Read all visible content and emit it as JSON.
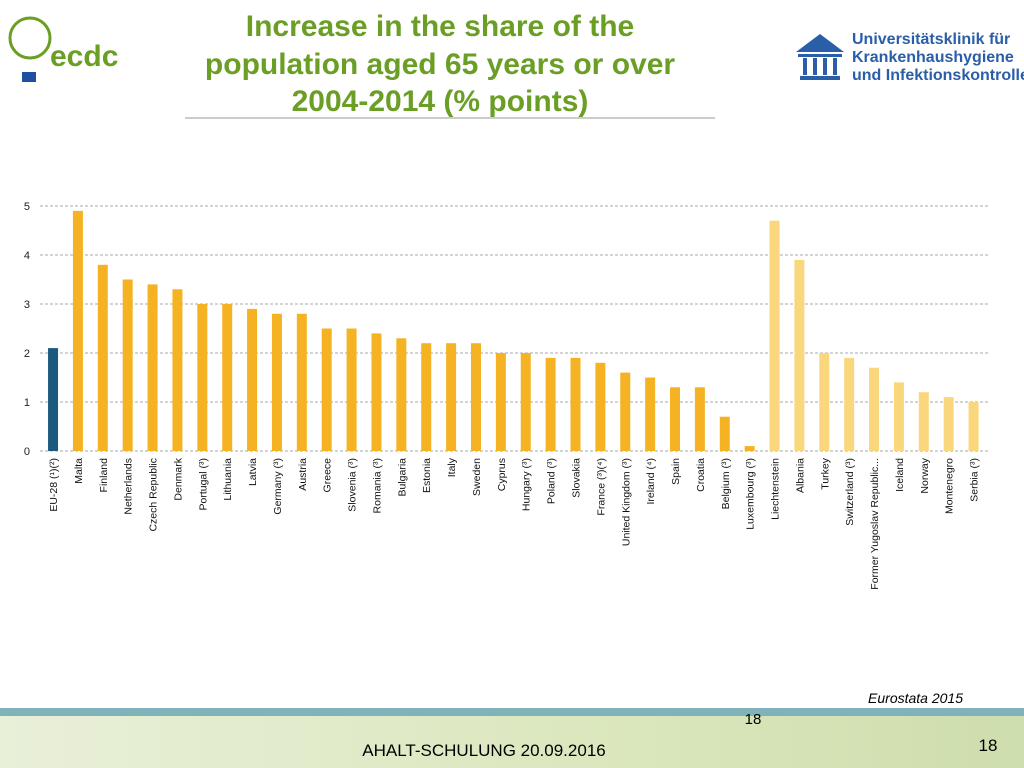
{
  "chart_data": {
    "type": "bar",
    "title": [
      "Increase in the share of the",
      "population aged 65 years or over",
      "2004-2014 (% points)"
    ],
    "categories": [
      "EU-28 (¹)(²)",
      "Malta",
      "Finland",
      "Netherlands",
      "Czech Republic",
      "Denmark",
      "Portugal (³)",
      "Lithuania",
      "Latvia",
      "Germany (³)",
      "Austria",
      "Greece",
      "Slovenia (³)",
      "Romania (³)",
      "Bulgaria",
      "Estonia",
      "Italy",
      "Sweden",
      "Cyprus",
      "Hungary (³)",
      "Poland (³)",
      "Slovakia",
      "France (³)(⁴)",
      "United Kingdom (³)",
      "Ireland (⁴)",
      "Spain",
      "Croatia",
      "Belgium (³)",
      "Luxembourg (³)",
      "Liechtenstein",
      "Albania",
      "Turkey",
      "Switzerland (³)",
      "Former Yugoslav Republic...",
      "Iceland",
      "Norway",
      "Montenegro",
      "Serbia (³)"
    ],
    "values": [
      2.1,
      4.9,
      3.8,
      3.5,
      3.4,
      3.3,
      3.0,
      3.0,
      2.9,
      2.8,
      2.8,
      2.5,
      2.5,
      2.4,
      2.3,
      2.2,
      2.2,
      2.2,
      2.0,
      2.0,
      1.9,
      1.9,
      1.8,
      1.6,
      1.5,
      1.3,
      1.3,
      0.7,
      0.1,
      4.7,
      3.9,
      2.0,
      1.9,
      1.7,
      1.4,
      1.2,
      1.1,
      1.0
    ],
    "colors": [
      "#1b5a7e",
      "#f5b324",
      "#f5b324",
      "#f5b324",
      "#f5b324",
      "#f5b324",
      "#f5b324",
      "#f5b324",
      "#f5b324",
      "#f5b324",
      "#f5b324",
      "#f5b324",
      "#f5b324",
      "#f5b324",
      "#f5b324",
      "#f5b324",
      "#f5b324",
      "#f5b324",
      "#f5b324",
      "#f5b324",
      "#f5b324",
      "#f5b324",
      "#f5b324",
      "#f5b324",
      "#f5b324",
      "#f5b324",
      "#f5b324",
      "#f5b324",
      "#f5b324",
      "#fad77c",
      "#fad77c",
      "#fad77c",
      "#fad77c",
      "#fad77c",
      "#fad77c",
      "#fad77c",
      "#fad77c",
      "#fad77c"
    ],
    "ylim": [
      0,
      5
    ],
    "yticks": [
      0,
      1,
      2,
      3,
      4,
      5
    ],
    "grid": true,
    "source": "Eurostata  2015"
  },
  "slide": {
    "logo_left": "ecdc",
    "logo_right": [
      "Universitätsklinik für",
      "Krankenhaushygiene",
      "und Infektionskontrolle"
    ],
    "footer": "AHALT-SCHULUNG 20.09.2016",
    "page_center": "18",
    "page_number": "18"
  }
}
